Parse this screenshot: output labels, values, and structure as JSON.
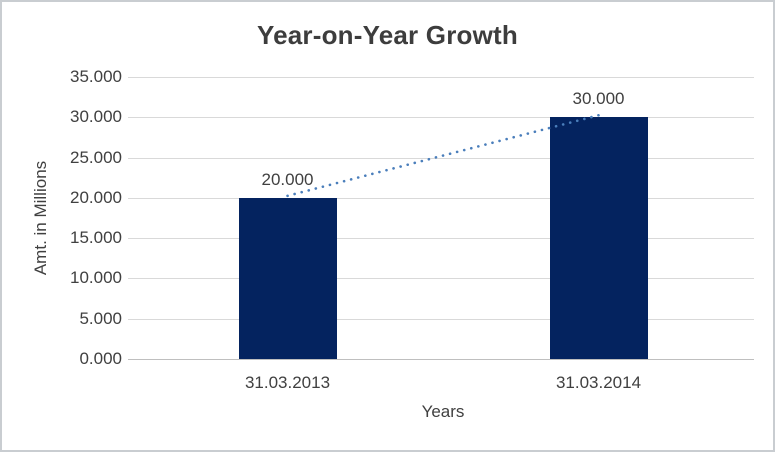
{
  "chart_data": {
    "type": "bar",
    "title": "Year-on-Year Growth",
    "xlabel": "Years",
    "ylabel": "Amt. in Millions",
    "categories": [
      "31.03.2013",
      "31.03.2014"
    ],
    "values": [
      20000,
      30000
    ],
    "value_labels": [
      "20.000",
      "30.000"
    ],
    "y_tick_labels": [
      "35.000",
      "30.000",
      "25.000",
      "20.000",
      "15.000",
      "10.000",
      "5.000",
      "0.000"
    ],
    "ylim": [
      0,
      35000
    ],
    "y_step": 5000,
    "grid": "horizontal",
    "legend": "none",
    "bar_color": "#04235f",
    "trendline": {
      "type": "linear",
      "style": "dotted",
      "color": "#4a7ebb"
    },
    "gridline_color": "#d9d9d9",
    "axis_line_color": "#bfbfbf",
    "text_color": "#404040",
    "background_color": "#ffffff",
    "border_color": "#c9cdd1"
  }
}
